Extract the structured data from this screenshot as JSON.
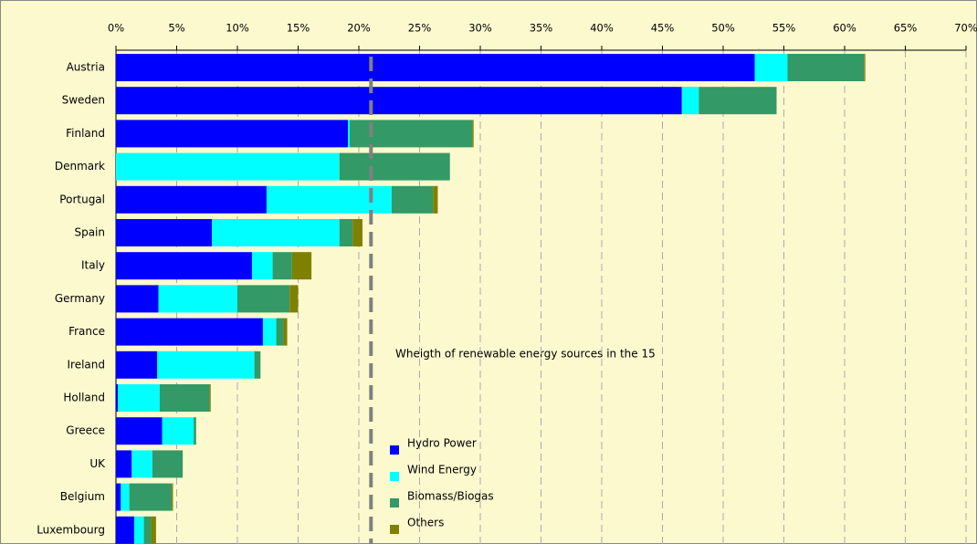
{
  "chart_data": {
    "type": "stacked_barh",
    "categories": [
      "Austria",
      "Sweden",
      "Finland",
      "Denmark",
      "Portugal",
      "Spain",
      "Italy",
      "Germany",
      "France",
      "Ireland",
      "Holland",
      "Greece",
      "UK",
      "Belgium",
      "Luxembourg"
    ],
    "series": [
      {
        "name": "Hydro Power",
        "color": "#0000ff",
        "values": [
          52.6,
          46.6,
          19.1,
          0,
          12.4,
          7.9,
          11.2,
          3.5,
          12.1,
          3.4,
          0.15,
          3.8,
          1.3,
          0.4,
          1.5
        ]
      },
      {
        "name": "Wind Energy",
        "color": "#00ffff",
        "values": [
          2.7,
          1.4,
          0.15,
          18.4,
          10.3,
          10.5,
          1.7,
          6.5,
          1.1,
          8.0,
          3.45,
          2.6,
          1.7,
          0.7,
          0.8
        ]
      },
      {
        "name": "Biomass/Biogas",
        "color": "#339966",
        "values": [
          6.3,
          6.4,
          10.1,
          9.1,
          3.4,
          1.1,
          1.6,
          4.3,
          0.6,
          0.5,
          4.1,
          0.2,
          2.5,
          3.5,
          0.6
        ]
      },
      {
        "name": "Others",
        "color": "#808000",
        "values": [
          0.1,
          0,
          0.1,
          0,
          0.4,
          0.8,
          1.6,
          0.7,
          0.3,
          0,
          0.1,
          0,
          0,
          0.1,
          0.4
        ]
      }
    ],
    "xlim": [
      0,
      70
    ],
    "xticks": [
      {
        "value": 0,
        "label": "0%"
      },
      {
        "value": 5,
        "label": "5%"
      },
      {
        "value": 10,
        "label": "10%"
      },
      {
        "value": 15,
        "label": "15%"
      },
      {
        "value": 20,
        "label": "20%"
      },
      {
        "value": 25,
        "label": "25%"
      },
      {
        "value": 30,
        "label": "30%"
      },
      {
        "value": 35,
        "label": "35%"
      },
      {
        "value": 40,
        "label": "40%"
      },
      {
        "value": 45,
        "label": "45%"
      },
      {
        "value": 50,
        "label": "50%"
      },
      {
        "value": 55,
        "label": "55%"
      },
      {
        "value": 60,
        "label": "60%"
      },
      {
        "value": 65,
        "label": "65%"
      },
      {
        "value": 70,
        "label": "70%"
      }
    ],
    "grid": true,
    "reference_line": 21,
    "annotation": "Wheigth of renewable energy sources in the 15"
  }
}
